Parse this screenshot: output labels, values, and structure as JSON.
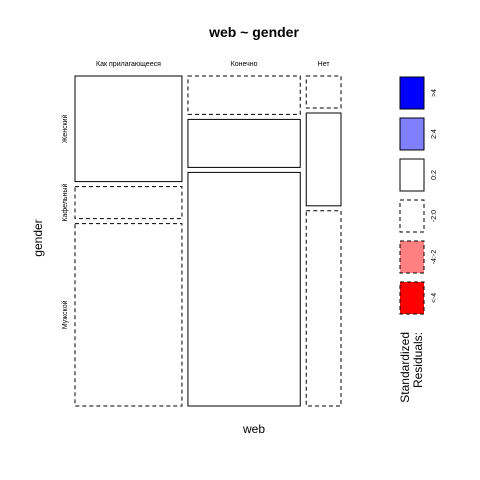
{
  "chart_data": {
    "type": "mosaic",
    "title": "web ~ gender",
    "xlabel": "web",
    "ylabel": "gender",
    "x_categories": [
      "Как прилагающееся",
      "Конечно",
      "Нет"
    ],
    "y_categories": [
      "Женский",
      "Кафельный",
      "Мужской"
    ],
    "x_proportions": [
      0.4,
      0.42,
      0.13
    ],
    "cells": [
      {
        "x": "Как прилагающееся",
        "y": "Женский",
        "share": 0.33,
        "residual_class": "0:2"
      },
      {
        "x": "Как прилагающееся",
        "y": "Кафельный",
        "share": 0.1,
        "residual_class": "-2:0"
      },
      {
        "x": "Как прилагающееся",
        "y": "Мужской",
        "share": 0.57,
        "residual_class": "-2:0"
      },
      {
        "x": "Конечно",
        "y": "Женский",
        "share": 0.12,
        "residual_class": "-2:0"
      },
      {
        "x": "Конечно",
        "y": "Кафельный",
        "share": 0.15,
        "residual_class": "0:2"
      },
      {
        "x": "Конечно",
        "y": "Мужской",
        "share": 0.73,
        "residual_class": "0:2"
      },
      {
        "x": "Нет",
        "y": "Женский",
        "share": 0.1,
        "residual_class": "-2:0"
      },
      {
        "x": "Нет",
        "y": "Кафельный",
        "share": 0.29,
        "residual_class": "0:2"
      },
      {
        "x": "Нет",
        "y": "Мужской",
        "share": 0.61,
        "residual_class": "-2:0"
      }
    ],
    "legend": {
      "title_lines": [
        "Standardized",
        "Residuals:"
      ],
      "placement": "right",
      "items": [
        {
          "label": ">4",
          "fill": "#0000ff",
          "dashed": false
        },
        {
          "label": "2:4",
          "fill": "#8080ff",
          "dashed": false
        },
        {
          "label": "0:2",
          "fill": "#ffffff",
          "dashed": false
        },
        {
          "label": "-2:0",
          "fill": "#ffffff",
          "dashed": true
        },
        {
          "label": "-4:-2",
          "fill": "#ff8080",
          "dashed": true
        },
        {
          "label": "<-4",
          "fill": "#ff0000",
          "dashed": true
        }
      ]
    }
  }
}
